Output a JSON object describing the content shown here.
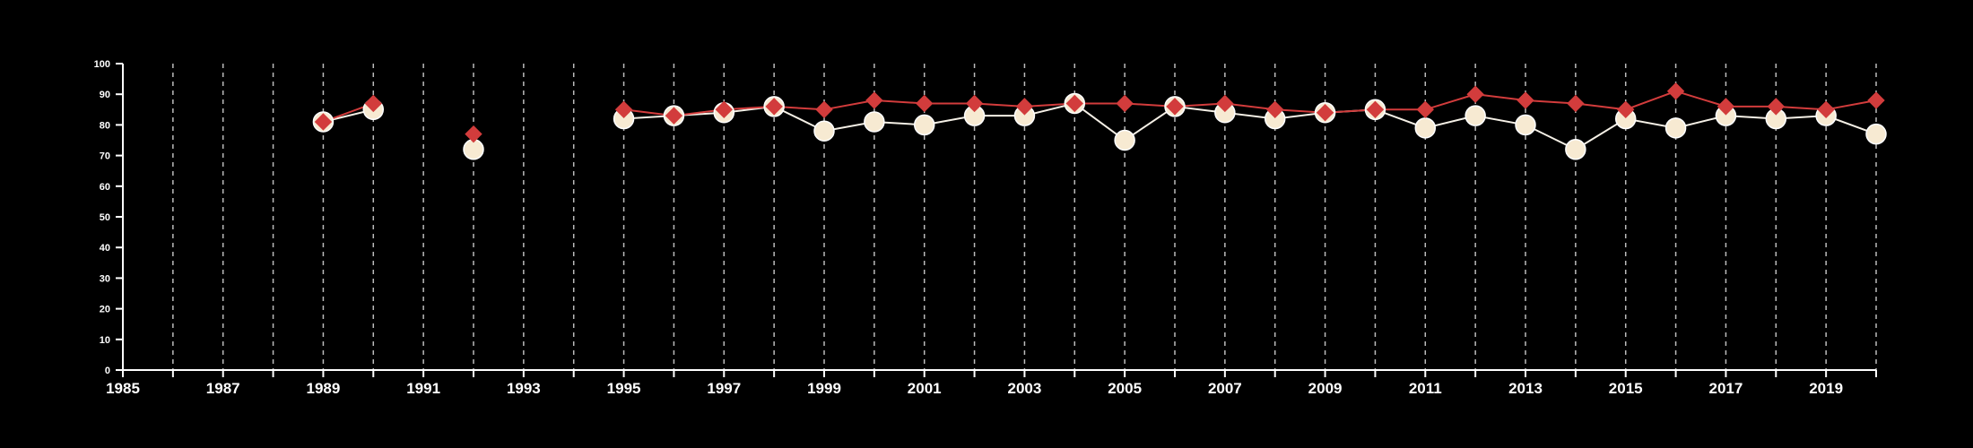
{
  "colors": {
    "background": "#000000",
    "axis": "#ffffff",
    "grid": "#bbbbbb",
    "series_white_line": "#f5f0e6",
    "series_white_marker": "#f7ead2",
    "series_red": "#d23c3c"
  },
  "chart_data": {
    "type": "line",
    "title": "",
    "xlabel": "",
    "ylabel": "",
    "xlim": [
      1985,
      2020
    ],
    "ylim": [
      0,
      100
    ],
    "grid": "vertical dashed at each year",
    "legend": "none",
    "x_ticks": [
      1985,
      1987,
      1989,
      1991,
      1993,
      1995,
      1997,
      1999,
      2001,
      2003,
      2005,
      2007,
      2009,
      2011,
      2013,
      2015,
      2017,
      2019
    ],
    "y_ticks": [
      0,
      10,
      20,
      30,
      40,
      50,
      60,
      70,
      80,
      90,
      100
    ],
    "series": [
      {
        "marker": "circle",
        "color": "#f7ead2",
        "points": [
          [
            1989,
            81
          ],
          [
            1990,
            85
          ],
          [
            1992,
            72
          ],
          [
            1995,
            82
          ],
          [
            1996,
            83
          ],
          [
            1997,
            84
          ],
          [
            1998,
            86
          ],
          [
            1999,
            78
          ],
          [
            2000,
            81
          ],
          [
            2001,
            80
          ],
          [
            2002,
            83
          ],
          [
            2003,
            83
          ],
          [
            2004,
            87
          ],
          [
            2005,
            75
          ],
          [
            2006,
            86
          ],
          [
            2007,
            84
          ],
          [
            2008,
            82
          ],
          [
            2009,
            84
          ],
          [
            2010,
            85
          ],
          [
            2011,
            79
          ],
          [
            2012,
            83
          ],
          [
            2013,
            80
          ],
          [
            2014,
            72
          ],
          [
            2015,
            82
          ],
          [
            2016,
            79
          ],
          [
            2017,
            83
          ],
          [
            2018,
            82
          ],
          [
            2019,
            83
          ],
          [
            2020,
            77
          ]
        ]
      },
      {
        "marker": "diamond",
        "color": "#d23c3c",
        "points": [
          [
            1989,
            81
          ],
          [
            1990,
            87
          ],
          [
            1992,
            77
          ],
          [
            1995,
            85
          ],
          [
            1996,
            83
          ],
          [
            1997,
            85
          ],
          [
            1998,
            86
          ],
          [
            1999,
            85
          ],
          [
            2000,
            88
          ],
          [
            2001,
            87
          ],
          [
            2002,
            87
          ],
          [
            2003,
            86
          ],
          [
            2004,
            87
          ],
          [
            2005,
            87
          ],
          [
            2006,
            86
          ],
          [
            2007,
            87
          ],
          [
            2008,
            85
          ],
          [
            2009,
            84
          ],
          [
            2010,
            85
          ],
          [
            2011,
            85
          ],
          [
            2012,
            90
          ],
          [
            2013,
            88
          ],
          [
            2014,
            87
          ],
          [
            2015,
            85
          ],
          [
            2016,
            91
          ],
          [
            2017,
            86
          ],
          [
            2018,
            86
          ],
          [
            2019,
            85
          ],
          [
            2020,
            88
          ]
        ]
      }
    ]
  }
}
